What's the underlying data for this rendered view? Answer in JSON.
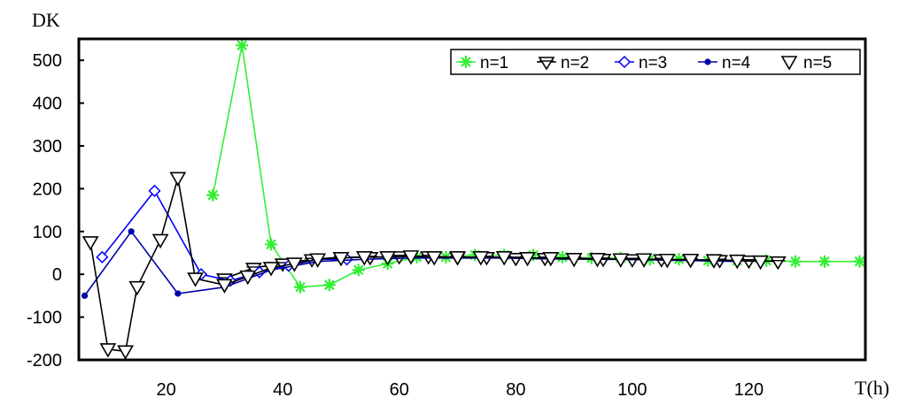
{
  "chart_data": {
    "type": "line",
    "title": "",
    "xlabel": "T(h)",
    "ylabel": "DK",
    "xlim": [
      5,
      140
    ],
    "ylim": [
      -200,
      550
    ],
    "x_ticks": [
      20,
      40,
      60,
      80,
      100,
      120
    ],
    "y_ticks": [
      -200,
      -100,
      0,
      100,
      200,
      300,
      400,
      500
    ],
    "grid": false,
    "legend_position": "top-right",
    "series": [
      {
        "name": "n=1",
        "color": "#33ee33",
        "marker": "asterisk",
        "x": [
          28,
          33,
          38,
          43,
          48,
          53,
          58,
          63,
          68,
          73,
          78,
          83,
          88,
          93,
          98,
          103,
          108,
          113,
          118,
          123,
          128,
          133,
          139
        ],
        "y": [
          185,
          535,
          70,
          -30,
          -25,
          10,
          25,
          40,
          40,
          45,
          45,
          45,
          40,
          38,
          38,
          35,
          35,
          32,
          32,
          32,
          30,
          30,
          30
        ]
      },
      {
        "name": "n=2",
        "color": "#000000",
        "marker": "triangle-down-bar",
        "x": [
          30,
          35,
          40,
          45,
          50,
          55,
          60,
          65,
          70,
          75,
          80,
          85,
          90,
          95,
          100,
          105,
          110,
          115,
          120,
          125
        ],
        "y": [
          -10,
          15,
          25,
          35,
          40,
          40,
          42,
          42,
          40,
          40,
          38,
          38,
          38,
          36,
          35,
          35,
          34,
          33,
          32,
          30
        ]
      },
      {
        "name": "n=3",
        "color": "#0000ff",
        "marker": "diamond-open",
        "x": [
          9,
          18,
          26,
          31,
          36,
          41,
          46,
          51
        ],
        "y": [
          40,
          195,
          0,
          -15,
          5,
          20,
          35,
          35
        ]
      },
      {
        "name": "n=4",
        "color": "#0000aa",
        "marker": "dot",
        "x": [
          6,
          14,
          22,
          30,
          38,
          46,
          54,
          62,
          70,
          78,
          86,
          94,
          102,
          110,
          118
        ],
        "y": [
          -50,
          100,
          -45,
          -30,
          10,
          30,
          35,
          38,
          38,
          38,
          36,
          35,
          34,
          32,
          30
        ]
      },
      {
        "name": "n=5",
        "color": "#000000",
        "marker": "triangle-down-open",
        "x": [
          7,
          10,
          13,
          15,
          19,
          22,
          25,
          30,
          34,
          38,
          42,
          46,
          50,
          54,
          58,
          62,
          66,
          70,
          74,
          78,
          82,
          86,
          90,
          94,
          98,
          102,
          106,
          110,
          114,
          118,
          122
        ],
        "y": [
          75,
          -175,
          -180,
          -30,
          80,
          225,
          -10,
          -25,
          -5,
          15,
          25,
          35,
          38,
          40,
          40,
          42,
          40,
          40,
          40,
          40,
          38,
          38,
          36,
          36,
          35,
          35,
          34,
          34,
          33,
          32,
          30
        ]
      }
    ]
  }
}
